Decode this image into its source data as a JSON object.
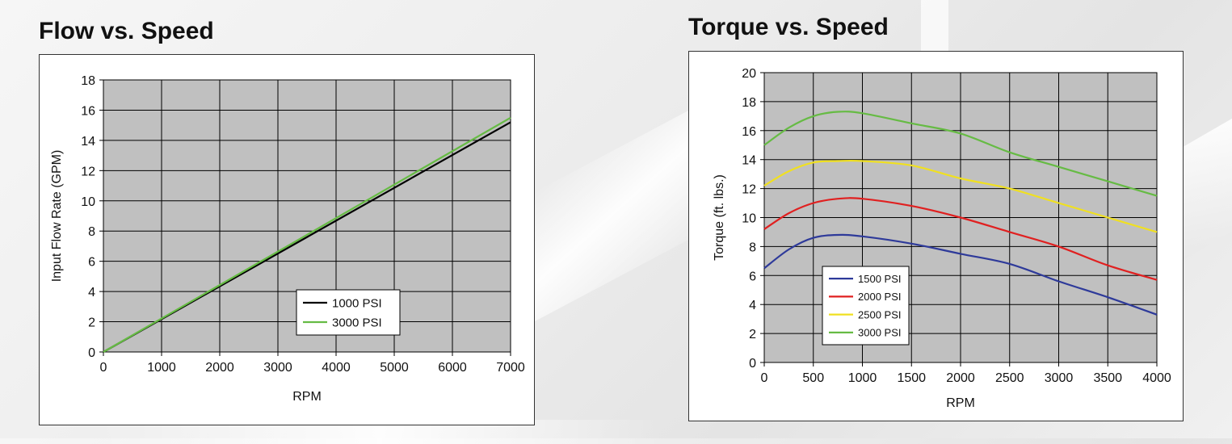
{
  "chart_data": [
    {
      "type": "line",
      "title": "Flow vs. Speed",
      "xlabel": "RPM",
      "ylabel": "Input Flow Rate (GPM)",
      "xlim": [
        0,
        7000
      ],
      "ylim": [
        0,
        18
      ],
      "xticks": [
        0,
        1000,
        2000,
        3000,
        4000,
        5000,
        6000,
        7000
      ],
      "yticks": [
        0,
        2,
        4,
        6,
        8,
        10,
        12,
        14,
        16,
        18
      ],
      "grid": true,
      "plot_background": "#c0c0c0",
      "legend_position": "bottom-right",
      "series": [
        {
          "name": "1000 PSI",
          "color": "#000000",
          "x": [
            0,
            7000
          ],
          "y": [
            0,
            15.2
          ]
        },
        {
          "name": "3000 PSI",
          "color": "#66bb44",
          "x": [
            0,
            7000
          ],
          "y": [
            0,
            15.5
          ]
        }
      ]
    },
    {
      "type": "line",
      "title": "Torque vs. Speed",
      "xlabel": "RPM",
      "ylabel": "Torque (ft. lbs.)",
      "xlim": [
        0,
        4000
      ],
      "ylim": [
        0,
        20
      ],
      "xticks": [
        0,
        500,
        1000,
        1500,
        2000,
        2500,
        3000,
        3500,
        4000
      ],
      "yticks": [
        0,
        2,
        4,
        6,
        8,
        10,
        12,
        14,
        16,
        18,
        20
      ],
      "grid": true,
      "plot_background": "#c0c0c0",
      "legend_position": "bottom-left",
      "series": [
        {
          "name": "1500 PSI",
          "color": "#2e3a9a",
          "x": [
            0,
            250,
            500,
            750,
            1000,
            1500,
            2000,
            2500,
            3000,
            3500,
            4000
          ],
          "y": [
            6.5,
            7.8,
            8.6,
            8.8,
            8.7,
            8.2,
            7.5,
            6.8,
            5.6,
            4.5,
            3.3
          ]
        },
        {
          "name": "2000 PSI",
          "color": "#e02020",
          "x": [
            0,
            250,
            500,
            750,
            1000,
            1500,
            2000,
            2500,
            3000,
            3500,
            4000
          ],
          "y": [
            9.2,
            10.3,
            11.0,
            11.3,
            11.3,
            10.8,
            10.0,
            9.0,
            8.0,
            6.7,
            5.7
          ]
        },
        {
          "name": "2500 PSI",
          "color": "#f0e020",
          "x": [
            0,
            250,
            500,
            750,
            1000,
            1500,
            2000,
            2500,
            3000,
            3500,
            4000
          ],
          "y": [
            12.2,
            13.2,
            13.8,
            13.9,
            13.9,
            13.6,
            12.7,
            12.0,
            11.0,
            10.0,
            9.0
          ]
        },
        {
          "name": "3000 PSI",
          "color": "#66bb44",
          "x": [
            0,
            250,
            500,
            750,
            1000,
            1500,
            2000,
            2500,
            3000,
            3500,
            4000
          ],
          "y": [
            15.0,
            16.2,
            17.0,
            17.3,
            17.2,
            16.5,
            15.8,
            14.5,
            13.5,
            12.5,
            11.5
          ]
        }
      ]
    }
  ]
}
